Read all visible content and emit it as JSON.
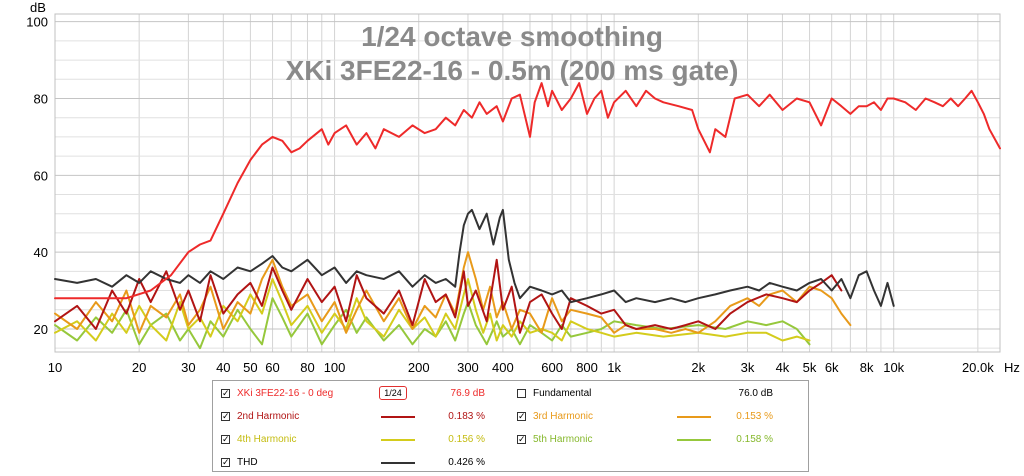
{
  "chart_data": {
    "type": "line",
    "title": "1/24 octave smoothing",
    "subtitle": "XKi 3FE22-16 - 0.5m (200 ms gate)",
    "ylabel": "dB",
    "xlabel": "Hz",
    "xscale": "log",
    "xlim": [
      10,
      24000
    ],
    "ylim": [
      14,
      102
    ],
    "yticks": [
      20,
      40,
      60,
      80,
      100
    ],
    "xticks": [
      {
        "value": 10,
        "label": "10"
      },
      {
        "value": 20,
        "label": "20"
      },
      {
        "value": 30,
        "label": "30"
      },
      {
        "value": 40,
        "label": "40"
      },
      {
        "value": 50,
        "label": "50"
      },
      {
        "value": 60,
        "label": "60"
      },
      {
        "value": 80,
        "label": "80"
      },
      {
        "value": 100,
        "label": "100"
      },
      {
        "value": 200,
        "label": "200"
      },
      {
        "value": 300,
        "label": "300"
      },
      {
        "value": 400,
        "label": "400"
      },
      {
        "value": 600,
        "label": "600"
      },
      {
        "value": 800,
        "label": "800"
      },
      {
        "value": 1000,
        "label": "1k"
      },
      {
        "value": 2000,
        "label": "2k"
      },
      {
        "value": 3000,
        "label": "3k"
      },
      {
        "value": 4000,
        "label": "4k"
      },
      {
        "value": 5000,
        "label": "5k"
      },
      {
        "value": 6000,
        "label": "6k"
      },
      {
        "value": 8000,
        "label": "8k"
      },
      {
        "value": 10000,
        "label": "10k"
      },
      {
        "value": 20000,
        "label": "20.0k"
      }
    ],
    "grid": true,
    "series": [
      {
        "name": "XKi 3FE22-16 - 0 deg",
        "color": "#ee2a2a",
        "x": [
          10,
          14,
          18,
          22,
          26,
          30,
          33,
          36,
          40,
          45,
          50,
          55,
          60,
          65,
          70,
          75,
          80,
          90,
          95,
          100,
          110,
          120,
          130,
          140,
          150,
          170,
          190,
          210,
          230,
          250,
          270,
          290,
          310,
          330,
          350,
          380,
          400,
          430,
          460,
          500,
          520,
          550,
          580,
          600,
          650,
          700,
          750,
          800,
          850,
          900,
          950,
          1000,
          1100,
          1200,
          1300,
          1400,
          1500,
          1700,
          1900,
          2000,
          2200,
          2300,
          2500,
          2700,
          3000,
          3300,
          3600,
          4000,
          4500,
          5000,
          5500,
          6000,
          6500,
          7000,
          7500,
          8000,
          8500,
          9000,
          9500,
          10000,
          11000,
          12000,
          13000,
          14000,
          15000,
          16000,
          17000,
          18000,
          19000,
          20000,
          21000,
          22000,
          24000
        ],
        "y": [
          28,
          28,
          28,
          30,
          34,
          40,
          42,
          43,
          50,
          58,
          64,
          68,
          70,
          69,
          66,
          67,
          69,
          72,
          68,
          71,
          73,
          68,
          71,
          67,
          72,
          70,
          73,
          71,
          72,
          75,
          73,
          77,
          75,
          79,
          76,
          78,
          74,
          80,
          81,
          70,
          79,
          84,
          78,
          82,
          77,
          80,
          84,
          76,
          80,
          82,
          75,
          79,
          82,
          78,
          82,
          80,
          79,
          78,
          77,
          72,
          66,
          72,
          70,
          80,
          81,
          78,
          81,
          77,
          80,
          79,
          73,
          80,
          78,
          76,
          78,
          78,
          79,
          77,
          80,
          80,
          79,
          77,
          80,
          79,
          78,
          80,
          78,
          80,
          82,
          79,
          76,
          72,
          67
        ]
      },
      {
        "name": "2nd Harmonic",
        "color": "#b11414",
        "x": [
          10,
          12,
          14,
          16,
          18,
          20,
          22,
          25,
          28,
          30,
          33,
          36,
          40,
          45,
          50,
          55,
          60,
          65,
          70,
          80,
          90,
          100,
          110,
          120,
          130,
          150,
          170,
          190,
          210,
          230,
          250,
          270,
          290,
          300,
          320,
          350,
          380,
          400,
          430,
          460,
          500,
          550,
          600,
          650,
          700,
          800,
          900,
          1000,
          1100,
          1200,
          1400,
          1600,
          1800,
          2000,
          2300,
          2600,
          3000,
          3500,
          4000,
          4500,
          5000,
          5500,
          6000,
          6500
        ],
        "y": [
          22,
          26,
          20,
          30,
          24,
          33,
          27,
          35,
          25,
          30,
          22,
          34,
          24,
          29,
          32,
          26,
          36,
          30,
          25,
          33,
          27,
          31,
          22,
          34,
          28,
          24,
          30,
          21,
          33,
          27,
          29,
          23,
          35,
          26,
          30,
          22,
          38,
          25,
          31,
          19,
          27,
          29,
          24,
          20,
          28,
          26,
          24,
          25,
          21,
          20,
          21,
          20,
          21,
          22,
          20,
          24,
          27,
          29,
          28,
          27,
          30,
          32,
          34,
          30
        ]
      },
      {
        "name": "3rd Harmonic",
        "color": "#e89a1a",
        "x": [
          10,
          12,
          14,
          16,
          18,
          20,
          22,
          25,
          28,
          30,
          33,
          36,
          40,
          45,
          50,
          55,
          60,
          65,
          70,
          80,
          90,
          100,
          110,
          120,
          130,
          150,
          170,
          190,
          210,
          230,
          250,
          270,
          290,
          300,
          320,
          340,
          360,
          380,
          400,
          430,
          460,
          500,
          550,
          600,
          650,
          700,
          800,
          900,
          1000,
          1100,
          1200,
          1400,
          1600,
          1800,
          2000,
          2300,
          2600,
          3000,
          3300,
          3600,
          4000,
          4500,
          5000,
          5500,
          6000,
          6500,
          7000
        ],
        "y": [
          24,
          20,
          27,
          22,
          30,
          19,
          26,
          23,
          29,
          21,
          25,
          31,
          20,
          27,
          24,
          33,
          38,
          31,
          26,
          29,
          22,
          27,
          19,
          25,
          30,
          22,
          28,
          20,
          26,
          23,
          29,
          24,
          36,
          40,
          33,
          25,
          31,
          23,
          27,
          20,
          25,
          24,
          19,
          28,
          22,
          25,
          24,
          23,
          19,
          21,
          20,
          20,
          19,
          20,
          19,
          22,
          26,
          28,
          26,
          29,
          30,
          27,
          31,
          30,
          28,
          24,
          21
        ]
      },
      {
        "name": "4th Harmonic",
        "color": "#d4cc1c",
        "x": [
          10,
          12,
          14,
          16,
          18,
          20,
          22,
          25,
          28,
          30,
          33,
          36,
          40,
          45,
          50,
          55,
          60,
          65,
          70,
          80,
          90,
          100,
          110,
          120,
          130,
          150,
          170,
          190,
          210,
          230,
          250,
          270,
          290,
          300,
          320,
          340,
          360,
          380,
          400,
          430,
          460,
          500,
          550,
          600,
          650,
          700,
          800,
          900,
          1000,
          1200,
          1500,
          2000,
          2500,
          3000,
          3500,
          4000,
          4500,
          5000
        ],
        "y": [
          19,
          22,
          17,
          24,
          19,
          26,
          21,
          17,
          27,
          20,
          23,
          18,
          26,
          22,
          29,
          24,
          33,
          27,
          21,
          26,
          19,
          24,
          20,
          28,
          22,
          18,
          25,
          20,
          23,
          18,
          24,
          20,
          29,
          33,
          25,
          19,
          24,
          17,
          21,
          18,
          22,
          19,
          20,
          19,
          17,
          22,
          20,
          19,
          18,
          19,
          18,
          19,
          18,
          19,
          19,
          17,
          18,
          17
        ]
      },
      {
        "name": "5th Harmonic",
        "color": "#96c83c",
        "x": [
          10,
          12,
          14,
          16,
          18,
          20,
          22,
          25,
          28,
          30,
          33,
          36,
          40,
          45,
          50,
          55,
          60,
          65,
          70,
          80,
          90,
          100,
          110,
          120,
          130,
          150,
          170,
          190,
          210,
          230,
          250,
          270,
          290,
          300,
          320,
          350,
          380,
          400,
          430,
          460,
          500,
          550,
          600,
          650,
          700,
          800,
          900,
          1000,
          1200,
          1500,
          2000,
          2500,
          3000,
          3500,
          4000,
          4500,
          5000
        ],
        "y": [
          21,
          17,
          23,
          19,
          25,
          16,
          21,
          24,
          17,
          20,
          15,
          22,
          18,
          25,
          20,
          16,
          28,
          23,
          18,
          24,
          16,
          21,
          25,
          19,
          23,
          17,
          21,
          16,
          20,
          18,
          22,
          17,
          24,
          27,
          21,
          16,
          22,
          18,
          20,
          16,
          21,
          19,
          17,
          21,
          18,
          19,
          20,
          22,
          21,
          20,
          21,
          20,
          22,
          21,
          22,
          20,
          16
        ]
      },
      {
        "name": "THD",
        "color": "#333333",
        "x": [
          10,
          12,
          14,
          16,
          18,
          20,
          22,
          25,
          28,
          30,
          33,
          36,
          40,
          45,
          50,
          55,
          60,
          65,
          70,
          80,
          90,
          100,
          110,
          120,
          130,
          150,
          170,
          190,
          210,
          230,
          250,
          270,
          280,
          290,
          300,
          310,
          330,
          350,
          370,
          390,
          400,
          420,
          440,
          460,
          500,
          550,
          600,
          650,
          700,
          800,
          900,
          1000,
          1100,
          1200,
          1400,
          1600,
          1800,
          2000,
          2300,
          2600,
          3000,
          3300,
          3600,
          4000,
          4500,
          5000,
          5500,
          6000,
          6500,
          7000,
          7500,
          8000,
          8500,
          9000,
          9500,
          10000
        ],
        "y": [
          33,
          32,
          33,
          31,
          34,
          32,
          35,
          33,
          32,
          34,
          32,
          35,
          33,
          36,
          35,
          37,
          39,
          36,
          35,
          38,
          34,
          36,
          32,
          35,
          34,
          33,
          35,
          31,
          34,
          32,
          33,
          31,
          40,
          47,
          50,
          51,
          46,
          50,
          42,
          49,
          51,
          38,
          32,
          28,
          31,
          30,
          29,
          30,
          27,
          28,
          29,
          30,
          27,
          28,
          27,
          28,
          27,
          28,
          29,
          30,
          31,
          30,
          32,
          31,
          30,
          32,
          33,
          30,
          33,
          28,
          34,
          35,
          30,
          26,
          32,
          26
        ]
      }
    ]
  },
  "legend": {
    "smoothing_badge": "1/24",
    "rows": [
      {
        "label": "XKi 3FE22-16 - 0 deg",
        "checked": "✓",
        "value": "76.9 dB",
        "color": "#ee2a2a"
      },
      {
        "label": "Fundamental",
        "checked": "",
        "value": "76.0 dB",
        "color": ""
      },
      {
        "label": "2nd Harmonic",
        "checked": "✓",
        "value": "0.183 %",
        "color": "#b11414"
      },
      {
        "label": "3rd Harmonic",
        "checked": "✓",
        "value": "0.153 %",
        "color": "#e89a1a"
      },
      {
        "label": "4th Harmonic",
        "checked": "✓",
        "value": "0.156 %",
        "color": "#d4cc1c"
      },
      {
        "label": "5th Harmonic",
        "checked": "✓",
        "value": "0.158 %",
        "color": "#96c83c"
      },
      {
        "label": "THD",
        "checked": "✓",
        "value": "0.426 %",
        "color": "#333333"
      }
    ]
  }
}
